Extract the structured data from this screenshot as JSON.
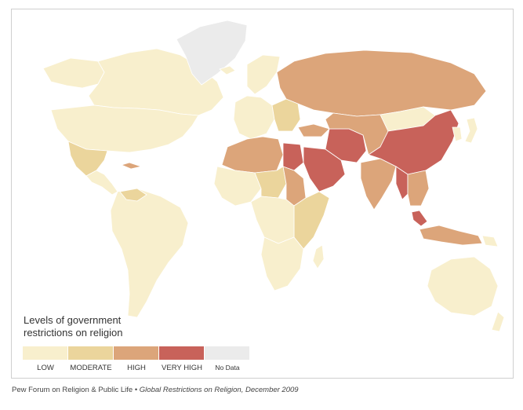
{
  "legend": {
    "title_line1": "Levels of government",
    "title_line2": "restrictions on religion",
    "levels": [
      {
        "label": "LOW",
        "color": "#f8efcd"
      },
      {
        "label": "MODERATE",
        "color": "#ebd59c"
      },
      {
        "label": "HIGH",
        "color": "#dca57a"
      },
      {
        "label": "VERY HIGH",
        "color": "#c8625a"
      },
      {
        "label": "No Data",
        "color": "#ebebeb"
      }
    ]
  },
  "source": {
    "org": "Pew Forum on Religion & Public Life",
    "separator": " • ",
    "publication": "Global Restrictions on Religion, December 2009"
  },
  "regions": [
    {
      "name": "canada",
      "level": "LOW"
    },
    {
      "name": "alaska",
      "level": "LOW"
    },
    {
      "name": "usa",
      "level": "LOW"
    },
    {
      "name": "greenland",
      "level": "No Data"
    },
    {
      "name": "mexico",
      "level": "MODERATE"
    },
    {
      "name": "central-america",
      "level": "LOW"
    },
    {
      "name": "cuba",
      "level": "HIGH"
    },
    {
      "name": "south-america",
      "level": "LOW"
    },
    {
      "name": "venezuela",
      "level": "MODERATE"
    },
    {
      "name": "iceland",
      "level": "LOW"
    },
    {
      "name": "scandinavia",
      "level": "LOW"
    },
    {
      "name": "western-europe",
      "level": "LOW"
    },
    {
      "name": "eastern-europe",
      "level": "MODERATE"
    },
    {
      "name": "russia",
      "level": "HIGH"
    },
    {
      "name": "turkey",
      "level": "HIGH"
    },
    {
      "name": "north-africa",
      "level": "HIGH"
    },
    {
      "name": "egypt",
      "level": "VERY HIGH"
    },
    {
      "name": "sahel-africa",
      "level": "MODERATE"
    },
    {
      "name": "west-africa",
      "level": "LOW"
    },
    {
      "name": "central-africa",
      "level": "LOW"
    },
    {
      "name": "sudan",
      "level": "HIGH"
    },
    {
      "name": "east-africa",
      "level": "MODERATE"
    },
    {
      "name": "southern-africa",
      "level": "LOW"
    },
    {
      "name": "madagascar",
      "level": "LOW"
    },
    {
      "name": "saudi-arabia",
      "level": "VERY HIGH"
    },
    {
      "name": "iran",
      "level": "VERY HIGH"
    },
    {
      "name": "central-asia",
      "level": "HIGH"
    },
    {
      "name": "china",
      "level": "VERY HIGH"
    },
    {
      "name": "mongolia",
      "level": "LOW"
    },
    {
      "name": "india",
      "level": "HIGH"
    },
    {
      "name": "burma",
      "level": "VERY HIGH"
    },
    {
      "name": "southeast-asia",
      "level": "HIGH"
    },
    {
      "name": "malaysia",
      "level": "VERY HIGH"
    },
    {
      "name": "indonesia",
      "level": "HIGH"
    },
    {
      "name": "japan",
      "level": "LOW"
    },
    {
      "name": "korea",
      "level": "LOW"
    },
    {
      "name": "australia",
      "level": "LOW"
    },
    {
      "name": "new-zealand",
      "level": "LOW"
    },
    {
      "name": "papua-new-guinea",
      "level": "LOW"
    }
  ]
}
